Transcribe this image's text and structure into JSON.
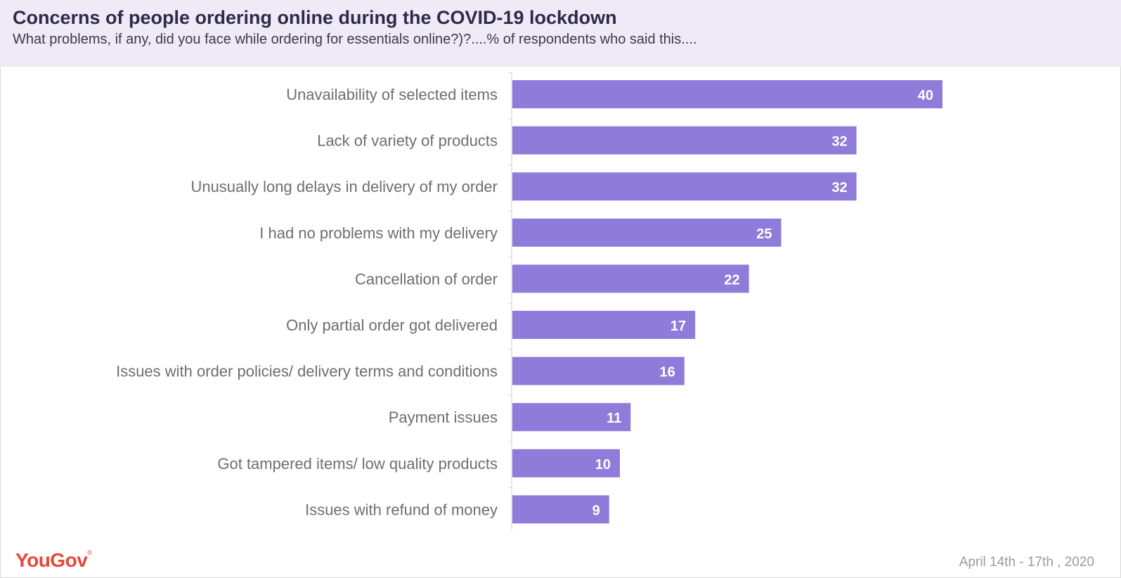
{
  "header": {
    "title": "Concerns of people ordering online during the COVID-19 lockdown",
    "subtitle": "What problems, if any, did you face while ordering for essentials online?)?....% of respondents who said this...."
  },
  "footer": {
    "logo": "YouGov",
    "logo_mark": "®",
    "date": "April 14th - 17th , 2020"
  },
  "colors": {
    "bar": "#8f7bd9",
    "header_bg": "#eeebf6",
    "brand": "#e8463a"
  },
  "chart_data": {
    "type": "bar",
    "orientation": "horizontal",
    "categories": [
      "Unavailability of selected items",
      "Lack of variety of products",
      "Unusually long delays in delivery of my order",
      "I had no problems with my delivery",
      "Cancellation of order",
      "Only partial order got delivered",
      "Issues with order policies/ delivery terms and conditions",
      "Payment issues",
      "Got tampered items/ low quality products",
      "Issues with refund of money"
    ],
    "values": [
      40,
      32,
      32,
      25,
      22,
      17,
      16,
      11,
      10,
      9
    ],
    "xlim": [
      0,
      55
    ],
    "grid": false,
    "data_labels": true
  }
}
